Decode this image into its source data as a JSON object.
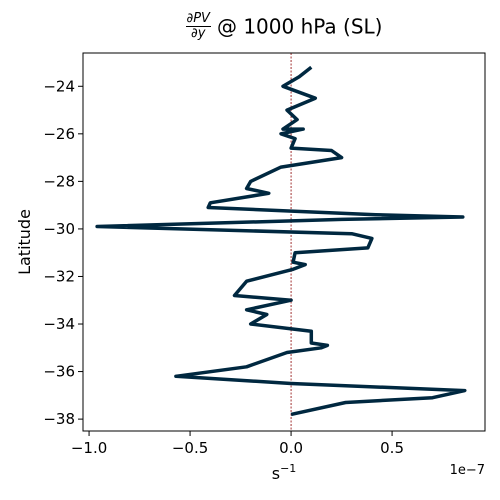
{
  "chart_data": {
    "type": "line",
    "title_fraction": {
      "numerator": "∂PV",
      "denominator": "∂y"
    },
    "title_rest": "@ 1000 hPa (SL)",
    "xlabel": "s",
    "xlabel_superscript": "−1",
    "ylabel": "Latitude",
    "x_offset_label": "1e−7",
    "xlim": [
      -1.03,
      0.96
    ],
    "ylim": [
      -38.5,
      -22.6
    ],
    "xticks": [
      -1.0,
      -0.5,
      0.0,
      0.5
    ],
    "xtick_labels": [
      "−1.0",
      "−0.5",
      "0.0",
      "0.5"
    ],
    "yticks": [
      -24,
      -26,
      -28,
      -30,
      -32,
      -34,
      -36,
      -38
    ],
    "ytick_labels": [
      "−24",
      "−26",
      "−28",
      "−30",
      "−32",
      "−34",
      "−36",
      "−38"
    ],
    "zero_line": {
      "x": 0,
      "color": "#8b0000",
      "style": "dashed"
    },
    "grid": false,
    "line_color": "#002840",
    "series": [
      {
        "x": [
          0.1,
          0.04,
          -0.04,
          0.12,
          -0.02,
          0.03,
          -0.04,
          0.06,
          -0.05,
          0.02,
          0.0,
          0.2,
          0.25,
          -0.05,
          -0.2,
          -0.22,
          -0.11,
          -0.4,
          -0.41,
          0.42,
          0.85,
          0.25,
          -0.96,
          0.3,
          0.4,
          0.38,
          0.02,
          0.01,
          0.07,
          0.01,
          -0.22,
          -0.28,
          0.0,
          -0.22,
          -0.12,
          -0.2,
          0.1,
          0.1,
          0.18,
          0.15,
          -0.02,
          -0.22,
          -0.57,
          0.0,
          0.86,
          0.7,
          0.27,
          0.0
        ],
        "y": [
          -23.2,
          -23.6,
          -24.0,
          -24.5,
          -25.0,
          -25.4,
          -25.8,
          -25.8,
          -26.0,
          -26.2,
          -26.6,
          -26.7,
          -27.0,
          -27.4,
          -28.0,
          -28.3,
          -28.5,
          -28.9,
          -29.1,
          -29.4,
          -29.5,
          -29.6,
          -29.9,
          -30.2,
          -30.4,
          -30.8,
          -31.0,
          -31.4,
          -31.5,
          -31.7,
          -32.2,
          -32.8,
          -33.0,
          -33.4,
          -33.6,
          -34.0,
          -34.3,
          -34.8,
          -34.9,
          -35.0,
          -35.2,
          -35.8,
          -36.2,
          -36.5,
          -36.8,
          -37.1,
          -37.3,
          -37.8
        ]
      }
    ]
  }
}
